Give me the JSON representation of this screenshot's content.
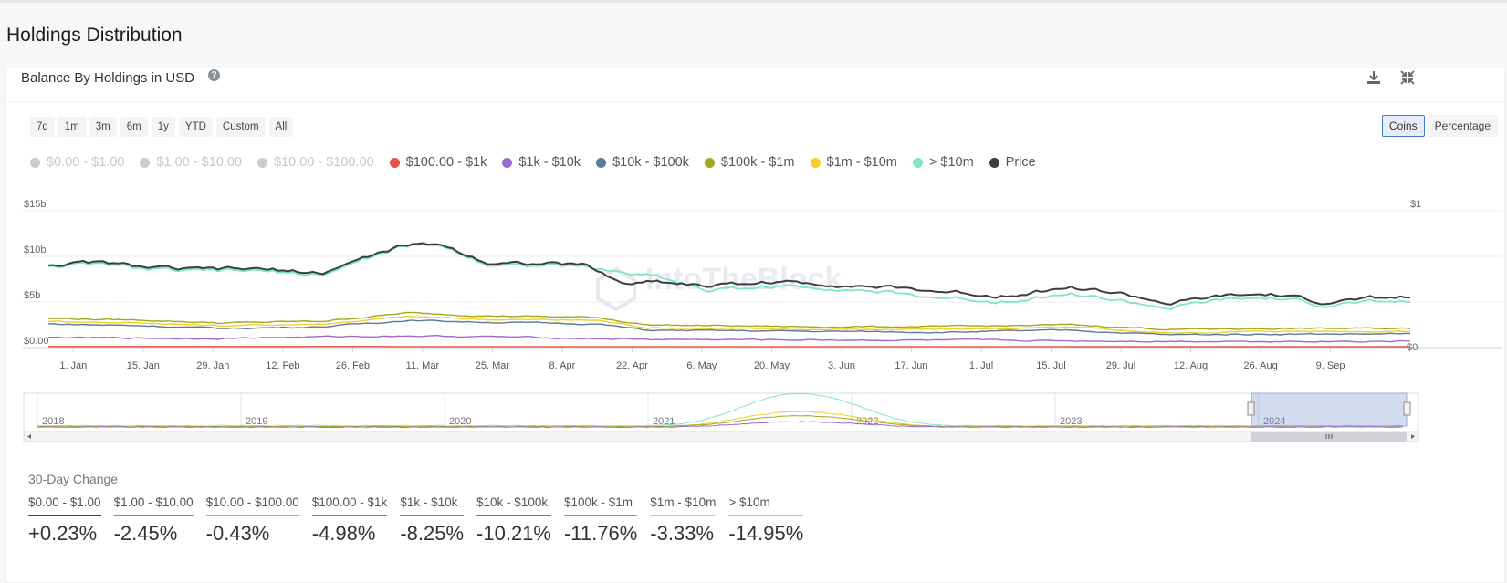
{
  "page": {
    "title": "Holdings Distribution"
  },
  "card": {
    "title": "Balance By Holdings in USD"
  },
  "range_buttons": [
    "7d",
    "1m",
    "3m",
    "6m",
    "1y",
    "YTD",
    "Custom",
    "All"
  ],
  "unit_toggle": {
    "options": [
      "Coins",
      "Percentage"
    ],
    "selected": "Coins"
  },
  "legend": [
    {
      "label": "$0.00 - $1.00",
      "color": "#cccccc",
      "enabled": false
    },
    {
      "label": "$1.00 - $10.00",
      "color": "#cccccc",
      "enabled": false
    },
    {
      "label": "$10.00 - $100.00",
      "color": "#cccccc",
      "enabled": false
    },
    {
      "label": "$100.00 - $1k",
      "color": "#e5534b",
      "enabled": true
    },
    {
      "label": "$1k - $10k",
      "color": "#9b6bd1",
      "enabled": true
    },
    {
      "label": "$10k - $100k",
      "color": "#5b7b96",
      "enabled": true
    },
    {
      "label": "$100k - $1m",
      "color": "#a4a81b",
      "enabled": true
    },
    {
      "label": "$1m - $10m",
      "color": "#f5cd2c",
      "enabled": true
    },
    {
      "label": "> $10m",
      "color": "#7fe6c8",
      "enabled": true
    },
    {
      "label": "Price",
      "color": "#3a3e44",
      "enabled": true
    }
  ],
  "chart_data": {
    "type": "line",
    "y_axis_labels": [
      "$15b",
      "$10b",
      "$5b",
      "$0.00"
    ],
    "y_axis_values": [
      15,
      10,
      5,
      0
    ],
    "y_right_labels": [
      "$1",
      "$0"
    ],
    "ylim": [
      0,
      15
    ],
    "x_labels": [
      "1. Jan",
      "15. Jan",
      "29. Jan",
      "12. Feb",
      "26. Feb",
      "11. Mar",
      "25. Mar",
      "8. Apr",
      "22. Apr",
      "6. May",
      "20. May",
      "3. Jun",
      "17. Jun",
      "1. Jul",
      "15. Jul",
      "29. Jul",
      "12. Aug",
      "26. Aug",
      "9. Sep"
    ],
    "x_label_index": [
      5,
      19,
      33,
      47,
      61,
      75,
      89,
      103,
      117,
      131,
      145,
      159,
      173,
      187,
      201,
      215,
      229,
      243,
      257
    ],
    "n_points": 274,
    "series": [
      {
        "name": "> $10m",
        "color": "#7fe6c8",
        "anchors": [
          [
            0,
            9.0
          ],
          [
            10,
            9.1
          ],
          [
            20,
            8.6
          ],
          [
            28,
            8.3
          ],
          [
            40,
            8.4
          ],
          [
            55,
            8.0
          ],
          [
            62,
            9.4
          ],
          [
            70,
            10.9
          ],
          [
            78,
            11.3
          ],
          [
            88,
            9.2
          ],
          [
            100,
            9.0
          ],
          [
            108,
            8.8
          ],
          [
            115,
            8.2
          ],
          [
            122,
            7.9
          ],
          [
            132,
            6.3
          ],
          [
            145,
            6.7
          ],
          [
            160,
            6.5
          ],
          [
            175,
            5.6
          ],
          [
            190,
            5.1
          ],
          [
            205,
            5.9
          ],
          [
            215,
            5.1
          ],
          [
            225,
            4.3
          ],
          [
            235,
            5.2
          ],
          [
            245,
            5.4
          ],
          [
            255,
            4.7
          ],
          [
            266,
            5.0
          ],
          [
            273,
            5.0
          ]
        ]
      },
      {
        "name": "$1m - $10m",
        "color": "#f5cd2c",
        "anchors": [
          [
            0,
            2.9
          ],
          [
            20,
            2.7
          ],
          [
            35,
            2.4
          ],
          [
            55,
            2.6
          ],
          [
            72,
            3.4
          ],
          [
            88,
            3.1
          ],
          [
            110,
            3.0
          ],
          [
            120,
            2.2
          ],
          [
            150,
            2.0
          ],
          [
            180,
            2.0
          ],
          [
            205,
            2.2
          ],
          [
            225,
            1.6
          ],
          [
            245,
            1.8
          ],
          [
            273,
            1.8
          ]
        ]
      },
      {
        "name": "$100k - $1m",
        "color": "#a4a81b",
        "anchors": [
          [
            0,
            3.2
          ],
          [
            20,
            3.0
          ],
          [
            35,
            2.7
          ],
          [
            55,
            2.9
          ],
          [
            72,
            3.8
          ],
          [
            88,
            3.5
          ],
          [
            110,
            3.3
          ],
          [
            120,
            2.5
          ],
          [
            150,
            2.3
          ],
          [
            180,
            2.3
          ],
          [
            205,
            2.5
          ],
          [
            225,
            2.0
          ],
          [
            245,
            2.1
          ],
          [
            273,
            2.1
          ]
        ]
      },
      {
        "name": "$10k - $100k",
        "color": "#5b7b96",
        "anchors": [
          [
            0,
            2.6
          ],
          [
            20,
            2.4
          ],
          [
            35,
            2.1
          ],
          [
            55,
            2.3
          ],
          [
            72,
            3.0
          ],
          [
            88,
            2.8
          ],
          [
            110,
            2.6
          ],
          [
            120,
            1.9
          ],
          [
            150,
            1.8
          ],
          [
            180,
            1.7
          ],
          [
            205,
            1.9
          ],
          [
            225,
            1.4
          ],
          [
            245,
            1.5
          ],
          [
            273,
            1.5
          ]
        ]
      },
      {
        "name": "$1k - $10k",
        "color": "#9b6bd1",
        "anchors": [
          [
            0,
            1.1
          ],
          [
            30,
            1.0
          ],
          [
            72,
            1.3
          ],
          [
            88,
            1.2
          ],
          [
            120,
            0.9
          ],
          [
            180,
            0.8
          ],
          [
            225,
            0.7
          ],
          [
            273,
            0.7
          ]
        ]
      },
      {
        "name": "$100.00 - $1k",
        "color": "#e5534b",
        "anchors": [
          [
            0,
            0.12
          ],
          [
            273,
            0.1
          ]
        ]
      },
      {
        "name": "Price",
        "color": "#3a3e44",
        "anchors": [
          [
            0,
            9.1
          ],
          [
            10,
            9.3
          ],
          [
            20,
            8.8
          ],
          [
            28,
            8.5
          ],
          [
            40,
            8.6
          ],
          [
            55,
            8.2
          ],
          [
            62,
            9.6
          ],
          [
            70,
            11.0
          ],
          [
            78,
            11.4
          ],
          [
            88,
            9.4
          ],
          [
            100,
            9.2
          ],
          [
            108,
            9.0
          ],
          [
            115,
            7.0
          ],
          [
            122,
            7.3
          ],
          [
            132,
            6.8
          ],
          [
            145,
            7.2
          ],
          [
            160,
            6.9
          ],
          [
            175,
            6.3
          ],
          [
            190,
            5.7
          ],
          [
            205,
            6.6
          ],
          [
            215,
            5.9
          ],
          [
            225,
            4.8
          ],
          [
            235,
            5.6
          ],
          [
            245,
            5.8
          ],
          [
            255,
            5.0
          ],
          [
            266,
            5.4
          ],
          [
            273,
            5.5
          ]
        ]
      }
    ],
    "navigator": {
      "years": [
        "2018",
        "2019",
        "2020",
        "2021",
        "2022",
        "2023",
        "2024"
      ]
    },
    "watermark": "IntoTheBlock"
  },
  "change": {
    "title": "30-Day Change",
    "items": [
      {
        "label": "$0.00 - $1.00",
        "value": "+0.23%",
        "color": "#1f3fb5"
      },
      {
        "label": "$1.00 - $10.00",
        "value": "-2.45%",
        "color": "#4caf50"
      },
      {
        "label": "$10.00 - $100.00",
        "value": "-0.43%",
        "color": "#f39c12"
      },
      {
        "label": "$100.00 - $1k",
        "value": "-4.98%",
        "color": "#e5534b"
      },
      {
        "label": "$1k - $10k",
        "value": "-8.25%",
        "color": "#9b6bd1"
      },
      {
        "label": "$10k - $100k",
        "value": "-10.21%",
        "color": "#5b7b96"
      },
      {
        "label": "$100k - $1m",
        "value": "-11.76%",
        "color": "#a4a81b"
      },
      {
        "label": "$1m - $10m",
        "value": "-3.33%",
        "color": "#f5cd2c"
      },
      {
        "label": "> $10m",
        "value": "-14.95%",
        "color": "#7fe6c8"
      }
    ]
  }
}
